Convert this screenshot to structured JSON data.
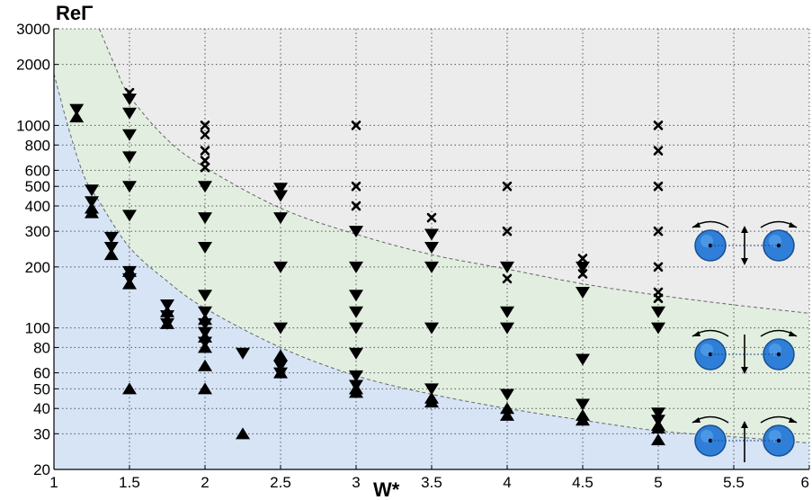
{
  "chart_data": {
    "type": "scatter",
    "title": "",
    "xlabel": "W*",
    "ylabel": "ReΓ",
    "xlim": [
      1,
      6
    ],
    "ylim": [
      20,
      3000
    ],
    "yscale": "log",
    "grid": true,
    "x_ticks": [
      "1",
      "1.5",
      "2",
      "2.5",
      "3",
      "3.5",
      "4",
      "4.5",
      "5",
      "5.5",
      "6"
    ],
    "y_ticks": [
      "20",
      "30",
      "40",
      "50",
      "60",
      "80",
      "100",
      "200",
      "300",
      "400",
      "500",
      "600",
      "800",
      "1000",
      "2000",
      "3000"
    ],
    "regions": [
      {
        "fill": "#d6e4f6"
      },
      {
        "fill": "#e2efe0"
      },
      {
        "fill": "#ececec"
      }
    ],
    "boundaries": [
      {
        "style": "dashed",
        "x": [
          1.0,
          1.1,
          1.2,
          1.3,
          1.5,
          1.75,
          2.0,
          2.5,
          3.0,
          3.5,
          4.0,
          4.5,
          5.0,
          5.5,
          6.0
        ],
        "y": [
          1800,
          950,
          560,
          420,
          250,
          170,
          125,
          80,
          58,
          47,
          40,
          35,
          31,
          29,
          27
        ]
      },
      {
        "style": "dashed",
        "x": [
          1.3,
          1.4,
          1.5,
          1.75,
          2.0,
          2.5,
          3.0,
          3.5,
          4.0,
          4.5,
          5.0,
          5.5,
          6.0
        ],
        "y": [
          3000,
          2000,
          1400,
          850,
          620,
          390,
          290,
          230,
          195,
          165,
          145,
          130,
          118
        ]
      }
    ],
    "series": [
      {
        "marker": "x",
        "x": [
          1.5,
          2,
          2,
          2,
          2,
          2,
          3,
          3,
          3,
          3.5,
          4,
          4,
          4,
          4.5,
          4.5,
          5,
          5,
          5,
          5,
          5,
          5,
          5
        ],
        "y": [
          1450,
          1000,
          900,
          750,
          670,
          620,
          1000,
          500,
          400,
          350,
          500,
          300,
          175,
          220,
          185,
          1000,
          750,
          500,
          300,
          200,
          150,
          140
        ]
      },
      {
        "marker": "triangle-down",
        "x": [
          1.15,
          1.25,
          1.25,
          1.38,
          1.38,
          1.5,
          1.5,
          1.5,
          1.5,
          1.5,
          1.5,
          1.5,
          1.5,
          1.75,
          1.75,
          1.75,
          2,
          2,
          2,
          2,
          2,
          2,
          2,
          2,
          2.25,
          2.5,
          2.5,
          2.5,
          2.5,
          2.5,
          2.5,
          2.5,
          3,
          3,
          3,
          3,
          3,
          3,
          3,
          3,
          3.5,
          3.5,
          3.5,
          3.5,
          3.5,
          4,
          4,
          4,
          4,
          4.5,
          4.5,
          4.5,
          4.5,
          5,
          5,
          5,
          5
        ],
        "y": [
          1200,
          480,
          420,
          280,
          250,
          1350,
          1150,
          900,
          700,
          500,
          360,
          190,
          175,
          130,
          115,
          105,
          500,
          350,
          250,
          145,
          120,
          105,
          95,
          85,
          75,
          490,
          450,
          350,
          200,
          100,
          65,
          60,
          300,
          200,
          145,
          120,
          100,
          75,
          58,
          52,
          290,
          250,
          200,
          100,
          50,
          200,
          120,
          100,
          47,
          200,
          150,
          70,
          42,
          120,
          100,
          38,
          35
        ]
      },
      {
        "marker": "triangle-up",
        "x": [
          1.15,
          1.25,
          1.25,
          1.38,
          1.5,
          1.5,
          1.5,
          1.75,
          1.75,
          2,
          2,
          2,
          2,
          2,
          2.25,
          2.5,
          2.5,
          3,
          3,
          3.5,
          3.5,
          4,
          4,
          4.5,
          4.5,
          5,
          5,
          5
        ],
        "y": [
          1100,
          390,
          370,
          230,
          190,
          165,
          50,
          120,
          105,
          110,
          90,
          80,
          65,
          50,
          30,
          73,
          60,
          50,
          48,
          45,
          43,
          40,
          37,
          37,
          35,
          33,
          32,
          28
        ]
      }
    ],
    "legend": [
      {
        "row": 1,
        "arrow": "up-down"
      },
      {
        "row": 2,
        "arrow": "down"
      },
      {
        "row": 3,
        "arrow": "up"
      }
    ]
  }
}
